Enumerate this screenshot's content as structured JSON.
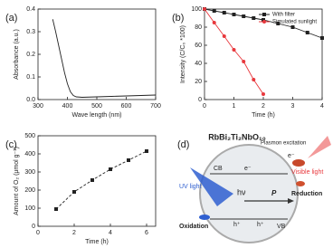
{
  "chart_data": [
    {
      "type": "line",
      "panel": "(a)",
      "xlabel": "Wave length (nm)",
      "ylabel": "Absorbance (a.u.)",
      "xlim": [
        300,
        700
      ],
      "xticks": [
        300,
        400,
        500,
        600,
        700
      ],
      "ylim": [
        0,
        0.4
      ],
      "yticks": [
        {
          "value": 0,
          "label": "0.0"
        },
        0.1,
        0.2,
        0.3,
        0.4
      ],
      "series": [
        {
          "color": "#222222",
          "linestyle": "solid",
          "x": [
            350,
            360,
            370,
            380,
            390,
            400,
            410,
            420,
            430,
            450,
            500,
            550,
            600,
            650,
            700
          ],
          "values": [
            0.355,
            0.3,
            0.24,
            0.18,
            0.12,
            0.07,
            0.035,
            0.018,
            0.012,
            0.01,
            0.012,
            0.014,
            0.016,
            0.018,
            0.02
          ]
        }
      ]
    },
    {
      "type": "line",
      "panel": "(b)",
      "xlabel": "Time (h)",
      "ylabel": "Intensity (C/C₀ *100)",
      "xlim": [
        0,
        4
      ],
      "xticks": [
        0,
        1,
        2,
        3,
        4
      ],
      "ylim": [
        0,
        100
      ],
      "yticks": [
        0,
        20,
        40,
        60,
        80,
        100
      ],
      "legend": "upper right",
      "series": [
        {
          "name": "With filter",
          "color": "#222222",
          "marker": "square",
          "linestyle": "solid",
          "x": [
            0,
            0.33,
            0.67,
            1,
            1.33,
            1.67,
            2,
            2.5,
            3,
            3.5,
            4
          ],
          "values": [
            100,
            98,
            96,
            94,
            92,
            90,
            88,
            84,
            80,
            74,
            68
          ]
        },
        {
          "name": "Simulated sunlight",
          "color": "#e8383d",
          "marker": "circle",
          "linestyle": "solid",
          "x": [
            0,
            0.33,
            0.67,
            1,
            1.33,
            1.67,
            2
          ],
          "values": [
            100,
            85,
            70,
            55,
            42,
            22,
            6
          ]
        }
      ]
    },
    {
      "type": "line",
      "panel": "(c)",
      "xlabel": "Time (h)",
      "ylabel": "Amount of O₂ (μmol g⁻¹)",
      "xlim": [
        0,
        6.5
      ],
      "xticks": [
        0,
        2,
        4,
        6
      ],
      "ylim": [
        0,
        500
      ],
      "yticks": [
        0,
        100,
        200,
        300,
        400,
        500
      ],
      "series": [
        {
          "color": "#222222",
          "marker": "square",
          "linestyle": "dashed",
          "x": [
            1,
            2,
            3,
            4,
            5,
            6
          ],
          "values": [
            95,
            190,
            255,
            315,
            365,
            415
          ]
        }
      ]
    }
  ],
  "diagram": {
    "panel": "(d)",
    "title": "RbBi₂Ti₂NbO₁₀",
    "plasmon": "Plasmon excitation",
    "visible": "Visible light",
    "reduction": "Reduction",
    "cb": "CB",
    "vb": "VB",
    "uv": "UV light",
    "hv": "hν",
    "p": "P",
    "oxidation": "Oxidation",
    "e1": "e⁻",
    "e2": "e⁻",
    "h1": "h⁺",
    "h2": "h⁺"
  }
}
